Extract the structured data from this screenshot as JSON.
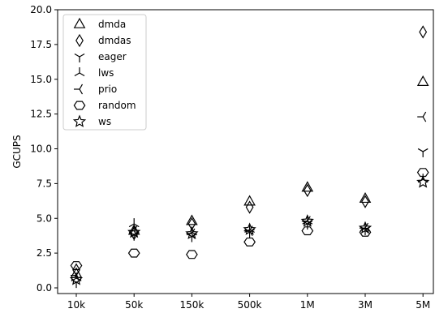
{
  "chart_data": {
    "type": "scatter",
    "title": "",
    "xlabel": "",
    "ylabel": "GCUPS",
    "ylim": [
      0,
      20
    ],
    "yticks": [
      "0.0",
      "2.5",
      "5.0",
      "7.5",
      "10.0",
      "12.5",
      "15.0",
      "17.5",
      "20.0"
    ],
    "categories": [
      "10k",
      "50k",
      "150k",
      "500k",
      "1M",
      "3M",
      "5M"
    ],
    "grid": false,
    "legend_position": "top-left",
    "marker_color": "#000000",
    "series": [
      {
        "name": "dmda",
        "marker": "triangle-up",
        "values": [
          1.0,
          4.1,
          4.8,
          6.2,
          7.2,
          6.4,
          14.8
        ]
      },
      {
        "name": "dmdas",
        "marker": "thin-diamond",
        "values": [
          1.3,
          3.9,
          4.6,
          5.8,
          7.0,
          6.2,
          18.4
        ]
      },
      {
        "name": "eager",
        "marker": "tri-down",
        "values": [
          0.4,
          3.8,
          3.7,
          4.0,
          4.6,
          4.2,
          9.8
        ]
      },
      {
        "name": "lws",
        "marker": "tri-up",
        "values": [
          0.7,
          4.6,
          4.0,
          4.2,
          4.8,
          4.3,
          7.8
        ]
      },
      {
        "name": "prio",
        "marker": "tri-left",
        "values": [
          0.9,
          4.1,
          3.9,
          4.1,
          4.8,
          4.3,
          12.3
        ]
      },
      {
        "name": "random",
        "marker": "hexagon",
        "values": [
          1.6,
          2.5,
          2.4,
          3.3,
          4.1,
          4.0,
          8.3
        ]
      },
      {
        "name": "ws",
        "marker": "star",
        "values": [
          0.6,
          4.0,
          3.9,
          4.2,
          4.8,
          4.3,
          7.6
        ]
      }
    ]
  }
}
